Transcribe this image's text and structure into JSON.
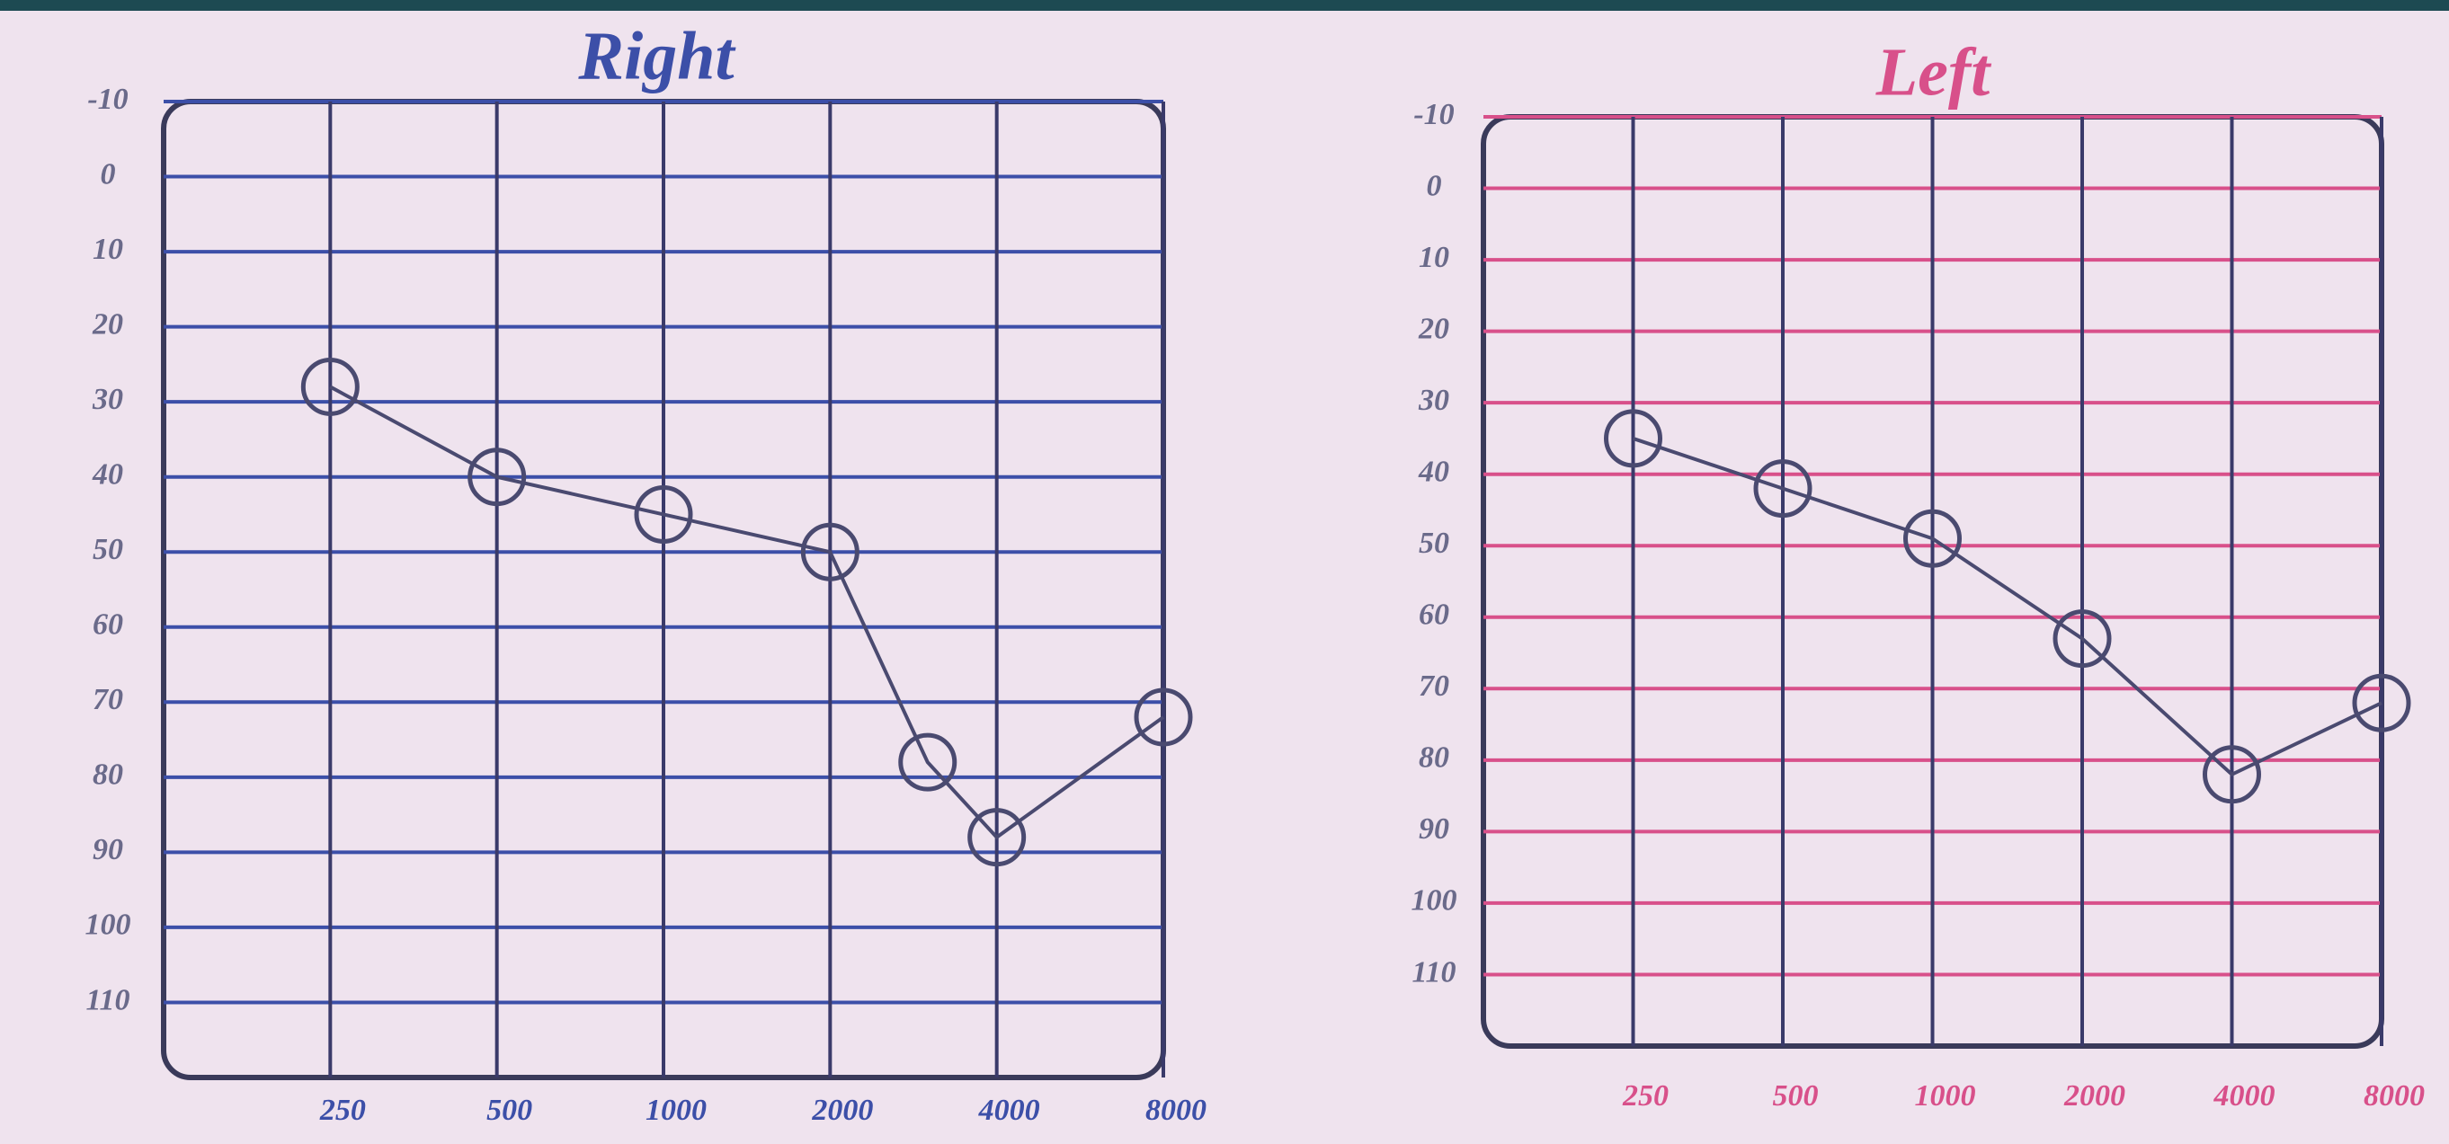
{
  "chart_data": [
    {
      "type": "line",
      "title": "Right",
      "color": "#3c4fa8",
      "line_color": "#4a4a70",
      "log_x": true,
      "grid": true,
      "x": [
        250,
        500,
        1000,
        2000,
        3000,
        4000,
        8000
      ],
      "values": [
        28,
        40,
        45,
        50,
        78,
        88,
        72
      ],
      "xlim": [
        125,
        8000
      ],
      "xticks": [
        250,
        500,
        1000,
        2000,
        4000,
        8000
      ],
      "ylim": [
        -10,
        120
      ],
      "yticks": [
        -10,
        0,
        10,
        20,
        30,
        40,
        50,
        60,
        70,
        80,
        90,
        100,
        110
      ]
    },
    {
      "type": "line",
      "title": "Left",
      "color": "#d8508a",
      "line_color": "#4a4a70",
      "log_x": true,
      "grid": true,
      "x": [
        250,
        500,
        1000,
        2000,
        4000,
        8000
      ],
      "values": [
        35,
        42,
        49,
        63,
        82,
        72
      ],
      "xlim": [
        125,
        8000
      ],
      "xticks": [
        250,
        500,
        1000,
        2000,
        4000,
        8000
      ],
      "ylim": [
        -10,
        120
      ],
      "yticks": [
        -10,
        0,
        10,
        20,
        30,
        40,
        50,
        60,
        70,
        80,
        90,
        100,
        110
      ]
    }
  ]
}
